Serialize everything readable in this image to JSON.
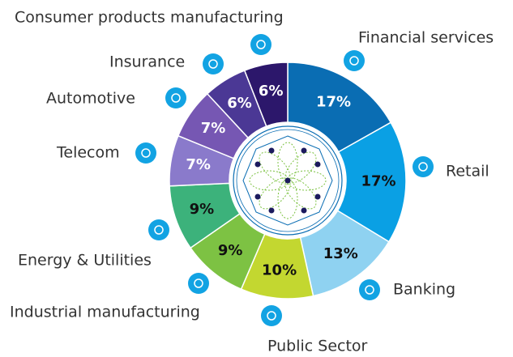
{
  "chart_data": {
    "type": "donut",
    "categories": [
      "Financial services",
      "Retail",
      "Banking",
      "Public Sector",
      "Industrial manufacturing",
      "Energy & Utilities",
      "Telecom",
      "Automotive",
      "Insurance",
      "Consumer products manufacturing"
    ],
    "values": [
      17,
      17,
      13,
      10,
      9,
      9,
      7,
      7,
      6,
      6
    ],
    "value_labels": [
      "17%",
      "17%",
      "13%",
      "10%",
      "9%",
      "9%",
      "7%",
      "7%",
      "6%",
      "6%"
    ],
    "colors": [
      "#0a6db3",
      "#0aa0e4",
      "#8fd2f1",
      "#c3d730",
      "#7dc243",
      "#3cb27b",
      "#8a7acb",
      "#7657b3",
      "#4b3895",
      "#2c176b"
    ]
  }
}
